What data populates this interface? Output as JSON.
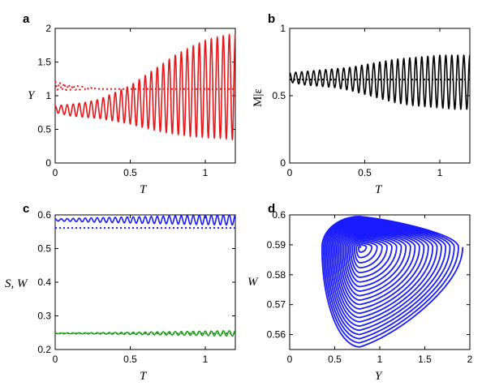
{
  "chart_data": [
    {
      "panel": "a",
      "type": "line",
      "xlabel": "T",
      "ylabel": "Y",
      "xlim": [
        0,
        1.2
      ],
      "ylim": [
        0,
        2
      ],
      "xticks": [
        "0",
        "0.5",
        "1"
      ],
      "yticks": [
        "0",
        "0.5",
        "1",
        "1.5",
        "2"
      ],
      "color": "#e8171b",
      "series": [
        {
          "style": "solid",
          "description_of_shape": "oscillation around ~1.0 growing over time",
          "t": [
            0,
            0.1,
            0.2,
            0.3,
            0.4,
            0.5,
            0.6,
            0.7,
            0.8,
            0.9,
            1.0,
            1.1,
            1.2
          ],
          "max": [
            0.85,
            0.87,
            0.9,
            0.95,
            1.05,
            1.15,
            1.3,
            1.45,
            1.6,
            1.72,
            1.82,
            1.88,
            1.92
          ],
          "min": [
            0.75,
            0.7,
            0.68,
            0.66,
            0.62,
            0.58,
            0.52,
            0.47,
            0.43,
            0.4,
            0.38,
            0.37,
            0.35
          ],
          "period": 0.04
        },
        {
          "style": "dotted",
          "t": [
            0,
            0.1,
            0.2,
            0.3,
            0.5,
            0.8,
            1.2
          ],
          "values": [
            1.15,
            1.12,
            1.11,
            1.1,
            1.1,
            1.1,
            1.1
          ],
          "early_oscillation": [
            0.12,
            0.08,
            0.03,
            0.0,
            0.0,
            0.0,
            0.0
          ]
        }
      ]
    },
    {
      "panel": "b",
      "type": "line",
      "xlabel": "T",
      "ylabel": "M|ε",
      "xlim": [
        0,
        1.2
      ],
      "ylim": [
        0,
        1
      ],
      "xticks": [
        "0",
        "0.5",
        "1"
      ],
      "yticks": [
        "0",
        "0.5",
        "1"
      ],
      "color": "#000000",
      "series": [
        {
          "style": "solid",
          "t": [
            0,
            0.1,
            0.2,
            0.3,
            0.4,
            0.5,
            0.6,
            0.7,
            0.8,
            0.9,
            1.0,
            1.1,
            1.2
          ],
          "max": [
            0.67,
            0.68,
            0.69,
            0.7,
            0.71,
            0.73,
            0.75,
            0.77,
            0.78,
            0.79,
            0.8,
            0.8,
            0.8
          ],
          "min": [
            0.6,
            0.58,
            0.57,
            0.56,
            0.54,
            0.51,
            0.48,
            0.45,
            0.43,
            0.42,
            0.41,
            0.4,
            0.4
          ],
          "period": 0.04
        },
        {
          "style": "dotted",
          "t": [
            0,
            1.2
          ],
          "values": [
            0.62,
            0.62
          ]
        }
      ]
    },
    {
      "panel": "c",
      "type": "line",
      "xlabel": "T",
      "ylabel": "S, W",
      "xlim": [
        0,
        1.2
      ],
      "ylim": [
        0.2,
        0.6
      ],
      "xticks": [
        "0",
        "0.5",
        "1"
      ],
      "yticks": [
        "0.2",
        "0.3",
        "0.4",
        "0.5",
        "0.6"
      ],
      "series": [
        {
          "style": "solid",
          "color": "#1a1aff",
          "center": 0.585,
          "t": [
            0,
            0.3,
            0.6,
            0.9,
            1.2
          ],
          "amplitude": [
            0.003,
            0.007,
            0.01,
            0.013,
            0.015
          ],
          "period": 0.04
        },
        {
          "style": "dotted",
          "color": "#1a1aff",
          "t": [
            0,
            1.2
          ],
          "values": [
            0.561,
            0.561
          ]
        },
        {
          "style": "solid",
          "color": "#22a020",
          "center": 0.248,
          "t": [
            0,
            0.3,
            0.6,
            0.9,
            1.2
          ],
          "amplitude": [
            0.001,
            0.002,
            0.004,
            0.006,
            0.008
          ],
          "period": 0.04
        },
        {
          "style": "dotted",
          "color": "#22a020",
          "t": [
            0,
            1.2
          ],
          "values": [
            0.248,
            0.248
          ]
        }
      ]
    },
    {
      "panel": "d",
      "type": "line",
      "xlabel": "Y",
      "ylabel": "W",
      "xlim": [
        0,
        2
      ],
      "ylim": [
        0.555,
        0.6
      ],
      "xticks": [
        "0",
        "0.5",
        "1",
        "1.5",
        "2"
      ],
      "yticks": [
        "0.56",
        "0.57",
        "0.58",
        "0.59",
        "0.6"
      ],
      "color": "#1a1aff",
      "description": "phase-space trajectory spiralling outward from fixed point",
      "fixed_point": [
        0.78,
        0.5892
      ],
      "outer_cycle": {
        "x_min": 0.35,
        "x_max": 1.92,
        "y_min": 0.5555,
        "y_max": 0.5998
      }
    }
  ]
}
